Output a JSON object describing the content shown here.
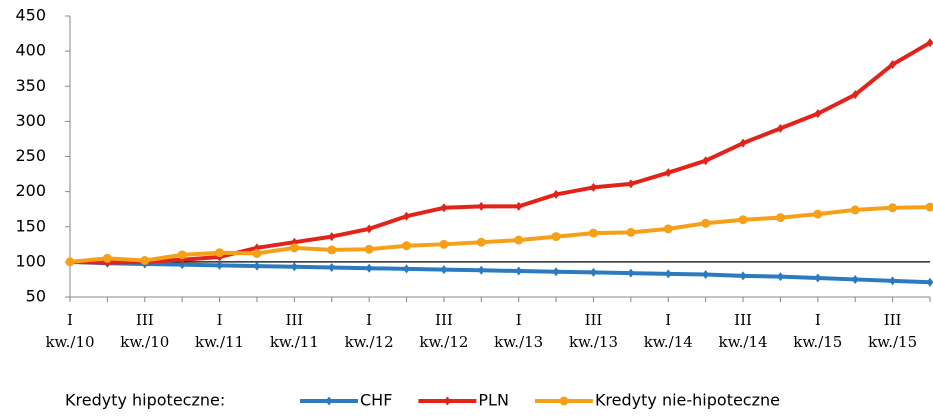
{
  "chart_data": {
    "type": "line",
    "categories": [
      "I kw./10",
      null,
      "III kw./10",
      null,
      "I kw./11",
      null,
      "III kw./11",
      null,
      "I kw./12",
      null,
      "III kw./12",
      null,
      "I kw./13",
      null,
      "III kw./13",
      null,
      "I kw./14",
      null,
      "III kw./14",
      null,
      "I kw./15",
      null,
      "III kw./15",
      null
    ],
    "series": [
      {
        "name": "CHF",
        "color": "#2b7bc0",
        "marker": "diamond",
        "values": [
          100,
          98,
          97,
          96,
          95,
          94,
          93,
          92,
          91,
          90,
          89,
          88,
          87,
          86,
          85,
          84,
          83,
          82,
          80,
          79,
          77,
          75,
          73,
          71
        ]
      },
      {
        "name": "PLN",
        "color": "#e2231a",
        "marker": "diamond",
        "values": [
          100,
          99,
          100,
          103,
          107,
          120,
          128,
          136,
          147,
          165,
          177,
          179,
          179,
          196,
          206,
          211,
          227,
          244,
          269,
          290,
          311,
          338,
          381,
          412
        ]
      },
      {
        "name": "Kredyty nie-hipoteczne",
        "color": "#f6a01a",
        "marker": "circle",
        "values": [
          100,
          105,
          102,
          110,
          113,
          112,
          120,
          117,
          118,
          123,
          125,
          128,
          131,
          136,
          141,
          142,
          147,
          155,
          160,
          163,
          168,
          174,
          177,
          178
        ]
      }
    ],
    "legend_title": "Kredyty hipoteczne:",
    "legend": "bottom",
    "reference_line": 100,
    "ylim": [
      50,
      450
    ],
    "yticks": [
      50,
      100,
      150,
      200,
      250,
      300,
      350,
      400,
      450
    ]
  }
}
